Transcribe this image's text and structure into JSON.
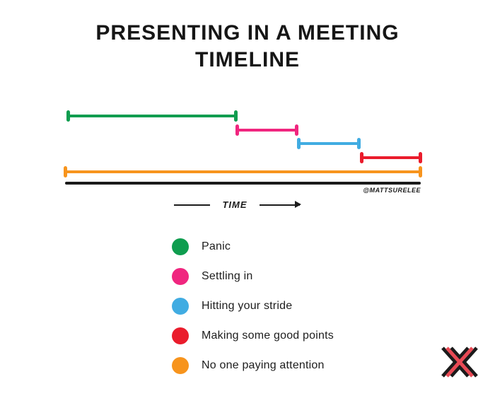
{
  "title": {
    "line1": "PRESENTING IN A MEETING",
    "line2": "TIMELINE"
  },
  "attribution": "@MATTSURELEE",
  "chart_data": {
    "type": "timeline_ranges",
    "title": "PRESENTING IN A MEETING TIMELINE",
    "xlabel": "TIME",
    "x_axis": {
      "style": "solid black line",
      "ticks": "none",
      "arrow_direction": "right",
      "range_pct": [
        0,
        100
      ]
    },
    "series": [
      {
        "name": "Panic",
        "color": "#0f9d4f",
        "start_pct": 0.8,
        "end_pct": 48.1
      },
      {
        "name": "Settling in",
        "color": "#f0267f",
        "start_pct": 48.3,
        "end_pct": 65.2
      },
      {
        "name": "Hitting your stride",
        "color": "#41ace2",
        "start_pct": 65.6,
        "end_pct": 82.7
      },
      {
        "name": "Making some good points",
        "color": "#ea1c2c",
        "start_pct": 83.3,
        "end_pct": 100
      },
      {
        "name": "No one paying attention",
        "color": "#f7941d",
        "start_pct": 0,
        "end_pct": 100
      }
    ],
    "legend": {
      "position": "bottom-left-of-center",
      "marker": "circle"
    }
  },
  "logo": {
    "description": "overlapping double-X mark",
    "black": "#1b1b1b",
    "red": "#e84a55"
  }
}
